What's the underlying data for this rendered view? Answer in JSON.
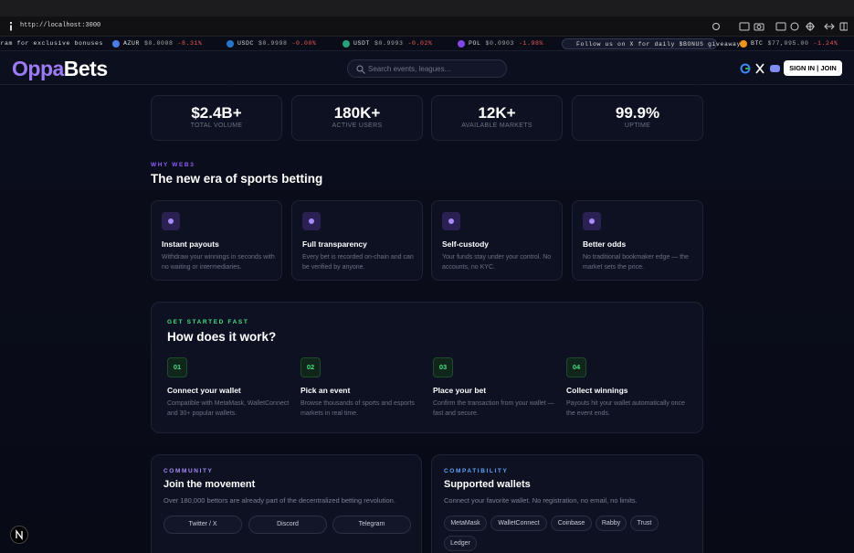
{
  "browser": {
    "url": "http://localhost:3000"
  },
  "ticker": {
    "promos": [
      "gram for exclusive bonuses",
      "Follow us on X for daily $BONUS giveaways"
    ],
    "coins": [
      {
        "symbol": "AZUR",
        "price": "$0.0008",
        "change": "-8.31%"
      },
      {
        "symbol": "USDC",
        "price": "$0.9998",
        "change": "-0.00%"
      },
      {
        "symbol": "USDT",
        "price": "$0.9993",
        "change": "-0.02%"
      },
      {
        "symbol": "POL",
        "price": "$0.0903",
        "change": "-1.98%"
      },
      {
        "symbol": "BTC",
        "price": "$77,095.00",
        "change": "-1.24%"
      }
    ]
  },
  "header": {
    "logo_primary": "Oppa",
    "logo_secondary": "Bets",
    "search_placeholder": "Search events, leagues...",
    "auth_button": "SIGN IN | JOIN"
  },
  "stats": [
    {
      "value": "$2.4B+",
      "label": "TOTAL VOLUME"
    },
    {
      "value": "180K+",
      "label": "ACTIVE USERS"
    },
    {
      "value": "12K+",
      "label": "AVAILABLE MARKETS"
    },
    {
      "value": "99.9%",
      "label": "UPTIME"
    }
  ],
  "why": {
    "eyebrow": "WHY WEB3",
    "title": "The new era of sports betting",
    "features": [
      {
        "title": "Instant payouts",
        "description": "Withdraw your winnings in seconds with no waiting or intermediaries."
      },
      {
        "title": "Full transparency",
        "description": "Every bet is recorded on-chain and can be verified by anyone."
      },
      {
        "title": "Self-custody",
        "description": "Your funds stay under your control. No accounts, no KYC."
      },
      {
        "title": "Better odds",
        "description": "No traditional bookmaker edge — the market sets the price."
      }
    ]
  },
  "how": {
    "eyebrow": "GET STARTED FAST",
    "title": "How does it work?",
    "steps": [
      {
        "number": "01",
        "title": "Connect your wallet",
        "description": "Compatible with MetaMask, WalletConnect and 30+ popular wallets."
      },
      {
        "number": "02",
        "title": "Pick an event",
        "description": "Browse thousands of sports and esports markets in real time."
      },
      {
        "number": "03",
        "title": "Place your bet",
        "description": "Confirm the transaction from your wallet — fast and secure."
      },
      {
        "number": "04",
        "title": "Collect winnings",
        "description": "Payouts hit your wallet automatically once the event ends."
      }
    ]
  },
  "community": {
    "eyebrow": "COMMUNITY",
    "title": "Join the movement",
    "description": "Over 180,000 bettors are already part of the decentralized betting revolution.",
    "links": [
      "Twitter / X",
      "Discord",
      "Telegram"
    ]
  },
  "compatibility": {
    "eyebrow": "COMPATIBILITY",
    "title": "Supported wallets",
    "description": "Connect your favorite wallet. No registration, no email, no limits.",
    "wallets": [
      "MetaMask",
      "WalletConnect",
      "Coinbase",
      "Rabby",
      "Trust",
      "Ledger"
    ]
  }
}
